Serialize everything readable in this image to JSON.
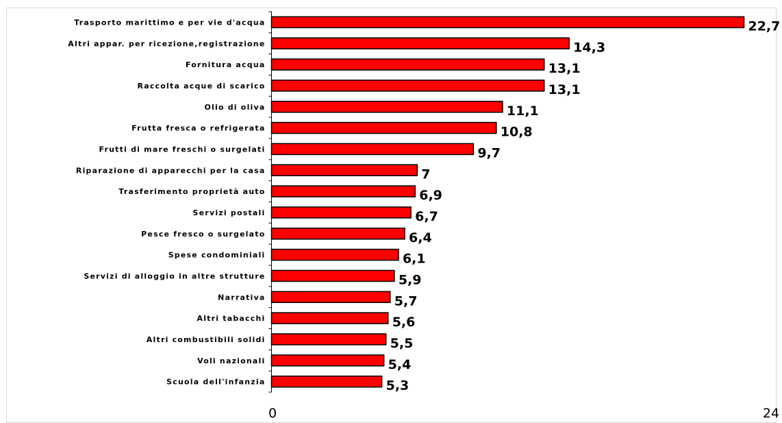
{
  "chart_data": {
    "type": "bar",
    "orientation": "horizontal",
    "title": "",
    "xlabel": "",
    "ylabel": "",
    "xlim": [
      0,
      24
    ],
    "x_tick_labels": [
      "0",
      "24"
    ],
    "grid": false,
    "legend": "none",
    "bar_color": "#ff0000",
    "bar_outline_color": "#000000",
    "categories": [
      "Trasporto marittimo e per vie d'acqua",
      "Altri appar. per ricezione,registrazione",
      "Fornitura acqua",
      "Raccolta acque di scarico",
      "Olio di oliva",
      "Frutta fresca o refrigerata",
      "Frutti di mare freschi o surgelati",
      "Riparazione di apparecchi per la casa",
      "Trasferimento proprietà auto",
      "Servizi postali",
      "Pesce fresco o surgelato",
      "Spese condominiali",
      "Servizi di alloggio in altre strutture",
      "Narrativa",
      "Altri tabacchi",
      "Altri combustibili solidi",
      "Voli nazionali",
      "Scuola dell'infanzia"
    ],
    "values": [
      22.7,
      14.3,
      13.1,
      13.1,
      11.1,
      10.8,
      9.7,
      7,
      6.9,
      6.7,
      6.4,
      6.1,
      5.9,
      5.7,
      5.6,
      5.5,
      5.4,
      5.3
    ],
    "value_labels": [
      "22,7",
      "14,3",
      "13,1",
      "13,1",
      "11,1",
      "10,8",
      "9,7",
      "7",
      "6,9",
      "6,7",
      "6,4",
      "6,1",
      "5,9",
      "5,7",
      "5,6",
      "5,5",
      "5,4",
      "5,3"
    ]
  }
}
